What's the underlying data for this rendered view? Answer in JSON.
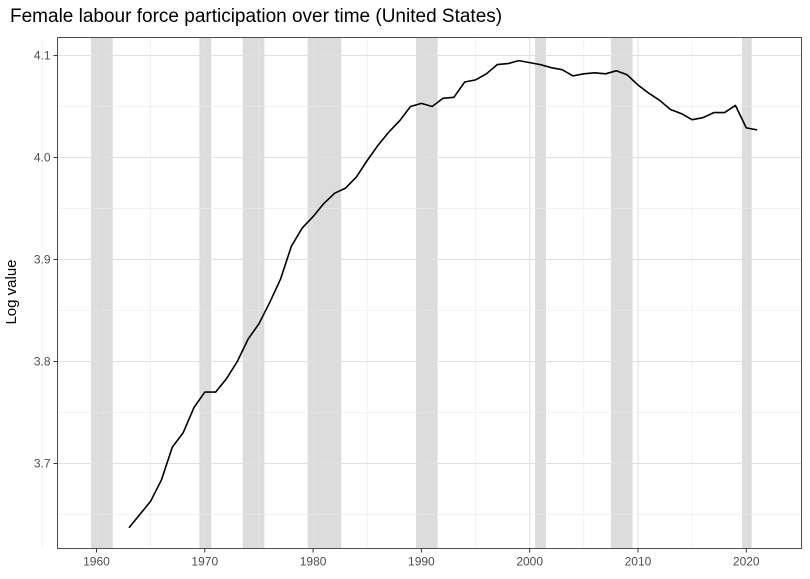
{
  "title": "Female labour force participation over time (United States)",
  "ylabel": "Log value",
  "chart_data": {
    "type": "line",
    "title": "Female labour force participation over time (United States)",
    "xlabel": "",
    "ylabel": "Log value",
    "xlim": [
      1956.4,
      2025.1
    ],
    "ylim": [
      3.6167,
      4.1176
    ],
    "x_ticks": [
      1960,
      1970,
      1980,
      1990,
      2000,
      2010,
      2020
    ],
    "y_ticks": [
      3.7,
      3.8,
      3.9,
      4.0,
      4.1
    ],
    "y_tick_labels": [
      "3.7",
      "3.8",
      "3.9",
      "4.0",
      "4.1"
    ],
    "grid": true,
    "legend": "none",
    "line_color": "#000000",
    "band_color": "#dcdcdc",
    "shaded_periods": [
      [
        1959.5,
        1961.5
      ],
      [
        1969.5,
        1970.6
      ],
      [
        1973.5,
        1975.5
      ],
      [
        1979.5,
        1982.6
      ],
      [
        1989.5,
        1991.5
      ],
      [
        2000.5,
        2001.5
      ],
      [
        2007.5,
        2009.5
      ],
      [
        2019.6,
        2020.5
      ]
    ],
    "series": [
      {
        "name": "Female labour force participation (log)",
        "x": [
          1963,
          1964,
          1965,
          1966,
          1967,
          1968,
          1969,
          1970,
          1971,
          1972,
          1973,
          1974,
          1975,
          1976,
          1977,
          1978,
          1979,
          1980,
          1981,
          1982,
          1983,
          1984,
          1985,
          1986,
          1987,
          1988,
          1989,
          1990,
          1991,
          1992,
          1993,
          1994,
          1995,
          1996,
          1997,
          1998,
          1999,
          2000,
          2001,
          2002,
          2003,
          2004,
          2005,
          2006,
          2007,
          2008,
          2009,
          2010,
          2011,
          2012,
          2013,
          2014,
          2015,
          2016,
          2017,
          2018,
          2019,
          2020,
          2021
        ],
        "values": [
          3.637,
          3.65,
          3.663,
          3.684,
          3.716,
          3.73,
          3.755,
          3.77,
          3.77,
          3.783,
          3.8,
          3.822,
          3.837,
          3.858,
          3.881,
          3.913,
          3.931,
          3.942,
          3.955,
          3.965,
          3.97,
          3.981,
          3.997,
          4.012,
          4.025,
          4.036,
          4.05,
          4.053,
          4.05,
          4.058,
          4.059,
          4.074,
          4.076,
          4.082,
          4.091,
          4.092,
          4.095,
          4.093,
          4.091,
          4.088,
          4.086,
          4.08,
          4.082,
          4.083,
          4.082,
          4.085,
          4.081,
          4.071,
          4.063,
          4.056,
          4.047,
          4.043,
          4.037,
          4.039,
          4.044,
          4.044,
          4.051,
          4.029,
          4.027
        ]
      }
    ]
  }
}
